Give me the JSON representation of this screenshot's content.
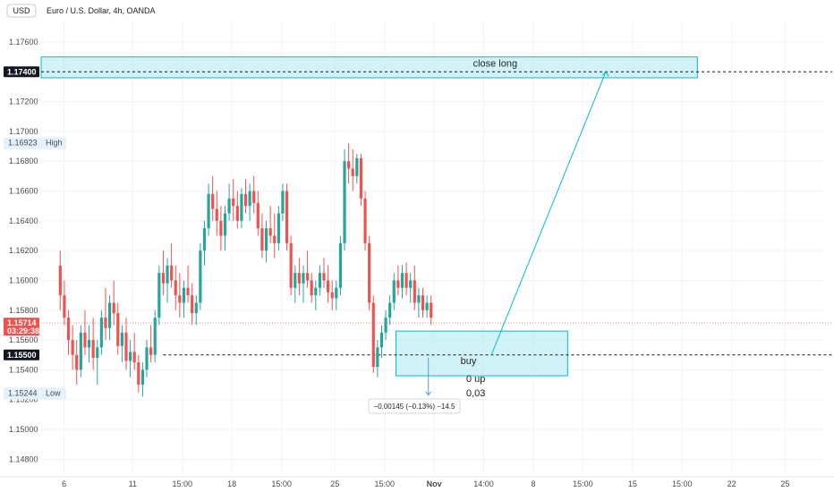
{
  "header": {
    "currency": "USD",
    "title": "Euro / U.S. Dollar, 4h, OANDA"
  },
  "colors": {
    "up": "#26a69a",
    "down": "#ef5350",
    "zone_fill": "#b2ebf2",
    "zone_stroke": "#00bcd4",
    "grid": "#f0f3fa"
  },
  "chart_data": {
    "type": "candlestick",
    "ylim": [
      1.147,
      1.1775
    ],
    "y_ticks": [
      1.176,
      1.174,
      1.172,
      1.17,
      1.168,
      1.166,
      1.164,
      1.162,
      1.16,
      1.158,
      1.156,
      1.154,
      1.152,
      1.15,
      1.148
    ],
    "y_tick_labels": [
      "1.17600",
      "",
      "1.17200",
      "1.17000",
      "1.16800",
      "1.16600",
      "1.16400",
      "1.16200",
      "1.16000",
      "1.15800",
      "1.15600",
      "1.15400",
      "1.15200",
      "1.15000",
      "1.14800"
    ],
    "x_tick_labels": [
      {
        "label": "6",
        "bar": 6
      },
      {
        "label": "11",
        "bar": 24
      },
      {
        "label": "15:00",
        "bar": 37
      },
      {
        "label": "18",
        "bar": 50
      },
      {
        "label": "15:00",
        "bar": 63
      },
      {
        "label": "25",
        "bar": 77
      },
      {
        "label": "15:00",
        "bar": 90
      },
      {
        "label": "Nov",
        "bar": 103,
        "bold": true
      },
      {
        "label": "14:00",
        "bar": 116
      },
      {
        "label": "8",
        "bar": 129
      },
      {
        "label": "15:00",
        "bar": 142
      },
      {
        "label": "15",
        "bar": 155
      },
      {
        "label": "15:00",
        "bar": 168
      },
      {
        "label": "22",
        "bar": 181
      },
      {
        "label": "25",
        "bar": 195
      }
    ],
    "bars_total": 205,
    "candles": [
      [
        1.161,
        1.162,
        1.158,
        1.159
      ],
      [
        1.159,
        1.16,
        1.157,
        1.1575
      ],
      [
        1.1575,
        1.158,
        1.155,
        1.156
      ],
      [
        1.156,
        1.157,
        1.154,
        1.155
      ],
      [
        1.155,
        1.156,
        1.153,
        1.154
      ],
      [
        1.154,
        1.157,
        1.1535,
        1.1565
      ],
      [
        1.1565,
        1.158,
        1.155,
        1.1555
      ],
      [
        1.1555,
        1.157,
        1.1545,
        1.156
      ],
      [
        1.156,
        1.1575,
        1.154,
        1.1548
      ],
      [
        1.1548,
        1.156,
        1.153,
        1.1555
      ],
      [
        1.1555,
        1.158,
        1.155,
        1.1575
      ],
      [
        1.1575,
        1.1595,
        1.156,
        1.1568
      ],
      [
        1.1568,
        1.159,
        1.156,
        1.1585
      ],
      [
        1.1585,
        1.16,
        1.157,
        1.1578
      ],
      [
        1.1578,
        1.1585,
        1.155,
        1.1556
      ],
      [
        1.1556,
        1.157,
        1.1545,
        1.1565
      ],
      [
        1.1565,
        1.1575,
        1.154,
        1.1546
      ],
      [
        1.1546,
        1.156,
        1.1535,
        1.1552
      ],
      [
        1.1552,
        1.1565,
        1.154,
        1.1545
      ],
      [
        1.1545,
        1.155,
        1.1525,
        1.153
      ],
      [
        1.153,
        1.1545,
        1.1522,
        1.154
      ],
      [
        1.154,
        1.156,
        1.1535,
        1.1555
      ],
      [
        1.1555,
        1.157,
        1.1545,
        1.155
      ],
      [
        1.155,
        1.158,
        1.1545,
        1.1575
      ],
      [
        1.1575,
        1.161,
        1.157,
        1.1605
      ],
      [
        1.1605,
        1.162,
        1.159,
        1.1598
      ],
      [
        1.1598,
        1.1615,
        1.1585,
        1.161
      ],
      [
        1.161,
        1.1625,
        1.1595,
        1.16
      ],
      [
        1.16,
        1.161,
        1.158,
        1.159
      ],
      [
        1.159,
        1.1605,
        1.1575,
        1.1585
      ],
      [
        1.1585,
        1.16,
        1.1575,
        1.1595
      ],
      [
        1.1595,
        1.161,
        1.1585,
        1.159
      ],
      [
        1.159,
        1.1598,
        1.157,
        1.1578
      ],
      [
        1.1578,
        1.159,
        1.157,
        1.1585
      ],
      [
        1.1585,
        1.1625,
        1.158,
        1.162
      ],
      [
        1.162,
        1.164,
        1.161,
        1.1635
      ],
      [
        1.1635,
        1.1665,
        1.163,
        1.1658
      ],
      [
        1.1658,
        1.167,
        1.164,
        1.1648
      ],
      [
        1.1648,
        1.166,
        1.163,
        1.164
      ],
      [
        1.164,
        1.165,
        1.162,
        1.163
      ],
      [
        1.163,
        1.165,
        1.162,
        1.1645
      ],
      [
        1.1645,
        1.1665,
        1.164,
        1.1655
      ],
      [
        1.1655,
        1.1668,
        1.164,
        1.165
      ],
      [
        1.165,
        1.166,
        1.1635,
        1.164
      ],
      [
        1.164,
        1.1662,
        1.1635,
        1.1658
      ],
      [
        1.1658,
        1.1668,
        1.1645,
        1.165
      ],
      [
        1.165,
        1.1665,
        1.164,
        1.166
      ],
      [
        1.166,
        1.167,
        1.1645,
        1.1652
      ],
      [
        1.1652,
        1.166,
        1.163,
        1.1635
      ],
      [
        1.1635,
        1.1645,
        1.1615,
        1.162
      ],
      [
        1.162,
        1.164,
        1.1612,
        1.1635
      ],
      [
        1.1635,
        1.165,
        1.1625,
        1.163
      ],
      [
        1.163,
        1.1645,
        1.1615,
        1.1625
      ],
      [
        1.1625,
        1.165,
        1.162,
        1.1645
      ],
      [
        1.1645,
        1.1665,
        1.164,
        1.166
      ],
      [
        1.166,
        1.1665,
        1.162,
        1.1625
      ],
      [
        1.1625,
        1.163,
        1.159,
        1.1595
      ],
      [
        1.1595,
        1.161,
        1.1585,
        1.1605
      ],
      [
        1.1605,
        1.1615,
        1.159,
        1.1598
      ],
      [
        1.1598,
        1.161,
        1.1585,
        1.1605
      ],
      [
        1.1605,
        1.162,
        1.1595,
        1.16
      ],
      [
        1.16,
        1.1605,
        1.1585,
        1.159
      ],
      [
        1.159,
        1.16,
        1.158,
        1.1595
      ],
      [
        1.1595,
        1.161,
        1.159,
        1.1605
      ],
      [
        1.1605,
        1.1615,
        1.1595,
        1.16
      ],
      [
        1.16,
        1.161,
        1.1585,
        1.1592
      ],
      [
        1.1592,
        1.16,
        1.158,
        1.1588
      ],
      [
        1.1588,
        1.16,
        1.158,
        1.1595
      ],
      [
        1.1595,
        1.163,
        1.159,
        1.1625
      ],
      [
        1.1625,
        1.1688,
        1.162,
        1.168
      ],
      [
        1.168,
        1.1692,
        1.1665,
        1.1675
      ],
      [
        1.1675,
        1.1688,
        1.166,
        1.167
      ],
      [
        1.167,
        1.1685,
        1.1665,
        1.1682
      ],
      [
        1.1682,
        1.1685,
        1.165,
        1.1655
      ],
      [
        1.1655,
        1.166,
        1.162,
        1.1625
      ],
      [
        1.1625,
        1.163,
        1.158,
        1.1585
      ],
      [
        1.1585,
        1.159,
        1.1538,
        1.1542
      ],
      [
        1.1542,
        1.156,
        1.1535,
        1.1555
      ],
      [
        1.1555,
        1.157,
        1.1548,
        1.1565
      ],
      [
        1.1565,
        1.158,
        1.156,
        1.1575
      ],
      [
        1.1575,
        1.159,
        1.157,
        1.1585
      ],
      [
        1.1585,
        1.1605,
        1.158,
        1.16
      ],
      [
        1.16,
        1.161,
        1.159,
        1.1595
      ],
      [
        1.1595,
        1.161,
        1.1588,
        1.1605
      ],
      [
        1.1605,
        1.1612,
        1.159,
        1.1595
      ],
      [
        1.1595,
        1.1605,
        1.1585,
        1.16
      ],
      [
        1.16,
        1.161,
        1.158,
        1.1585
      ],
      [
        1.1585,
        1.1595,
        1.1575,
        1.159
      ],
      [
        1.159,
        1.1595,
        1.1575,
        1.158
      ],
      [
        1.158,
        1.159,
        1.1575,
        1.1585
      ],
      [
        1.1585,
        1.159,
        1.157,
        1.1575
      ]
    ],
    "candle_start_bar": 5,
    "candle_bar_step": 1.08,
    "annotations": {
      "price_lines": [
        {
          "price": 1.174,
          "label": "1.17400"
        },
        {
          "price": 1.155,
          "label": "1.15500"
        }
      ],
      "high": {
        "price": 1.16923,
        "label": "1.16923",
        "tag": "High"
      },
      "low": {
        "price": 1.15244,
        "label": "1.15244",
        "tag": "Low"
      },
      "current": {
        "price": 1.15714,
        "label": "1.15714",
        "countdown": "03:29:38"
      },
      "zones": [
        {
          "name": "close-long-zone",
          "label": "close long",
          "top": 1.175,
          "bottom": 1.1736
        },
        {
          "name": "buy-zone",
          "label": "buy",
          "top": 1.1566,
          "bottom": 1.1536
        }
      ],
      "note_line1": "0 up",
      "note_line2": "0,03",
      "measure_label": "−0.00145 (−0.13%) −14.5"
    }
  }
}
